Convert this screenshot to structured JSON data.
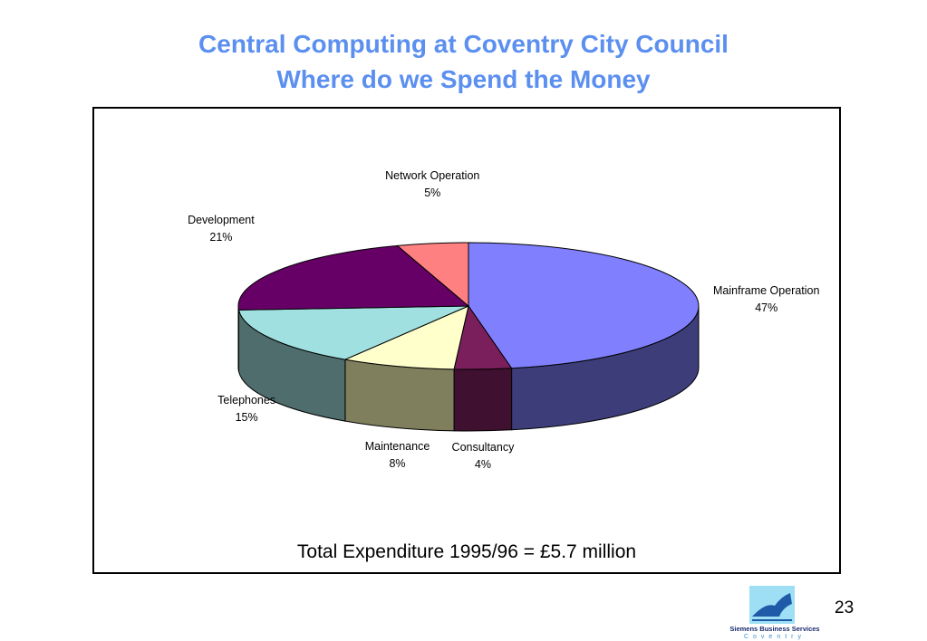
{
  "slide": {
    "title_line1": "Central Computing at Coventry City Council",
    "title_line2": "Where do we Spend the Money",
    "total_text": "Total Expenditure 1995/96 = £5.7 million",
    "page_number": "23",
    "logo": {
      "name": "Siemens Business Services",
      "subtitle": "Coventry"
    }
  },
  "chart_data": {
    "type": "pie",
    "style": "3d",
    "title": "",
    "slices": [
      {
        "label": "Mainframe Operation",
        "value": 47,
        "value_label": "47%",
        "top_color": "#8080ff",
        "side_color": "#3d3d7a"
      },
      {
        "label": "Consultancy",
        "value": 4,
        "value_label": "4%",
        "top_color": "#7a1f5c",
        "side_color": "#3f102f"
      },
      {
        "label": "Maintenance",
        "value": 8,
        "value_label": "8%",
        "top_color": "#ffffcc",
        "side_color": "#7f7f5e"
      },
      {
        "label": "Telephones",
        "value": 15,
        "value_label": "15%",
        "top_color": "#a0e0e0",
        "side_color": "#4f6d6d"
      },
      {
        "label": "Development",
        "value": 21,
        "value_label": "21%",
        "top_color": "#660066",
        "side_color": "#330033"
      },
      {
        "label": "Network Operation",
        "value": 5,
        "value_label": "5%",
        "top_color": "#ff8080",
        "side_color": "#7f4040"
      }
    ]
  }
}
